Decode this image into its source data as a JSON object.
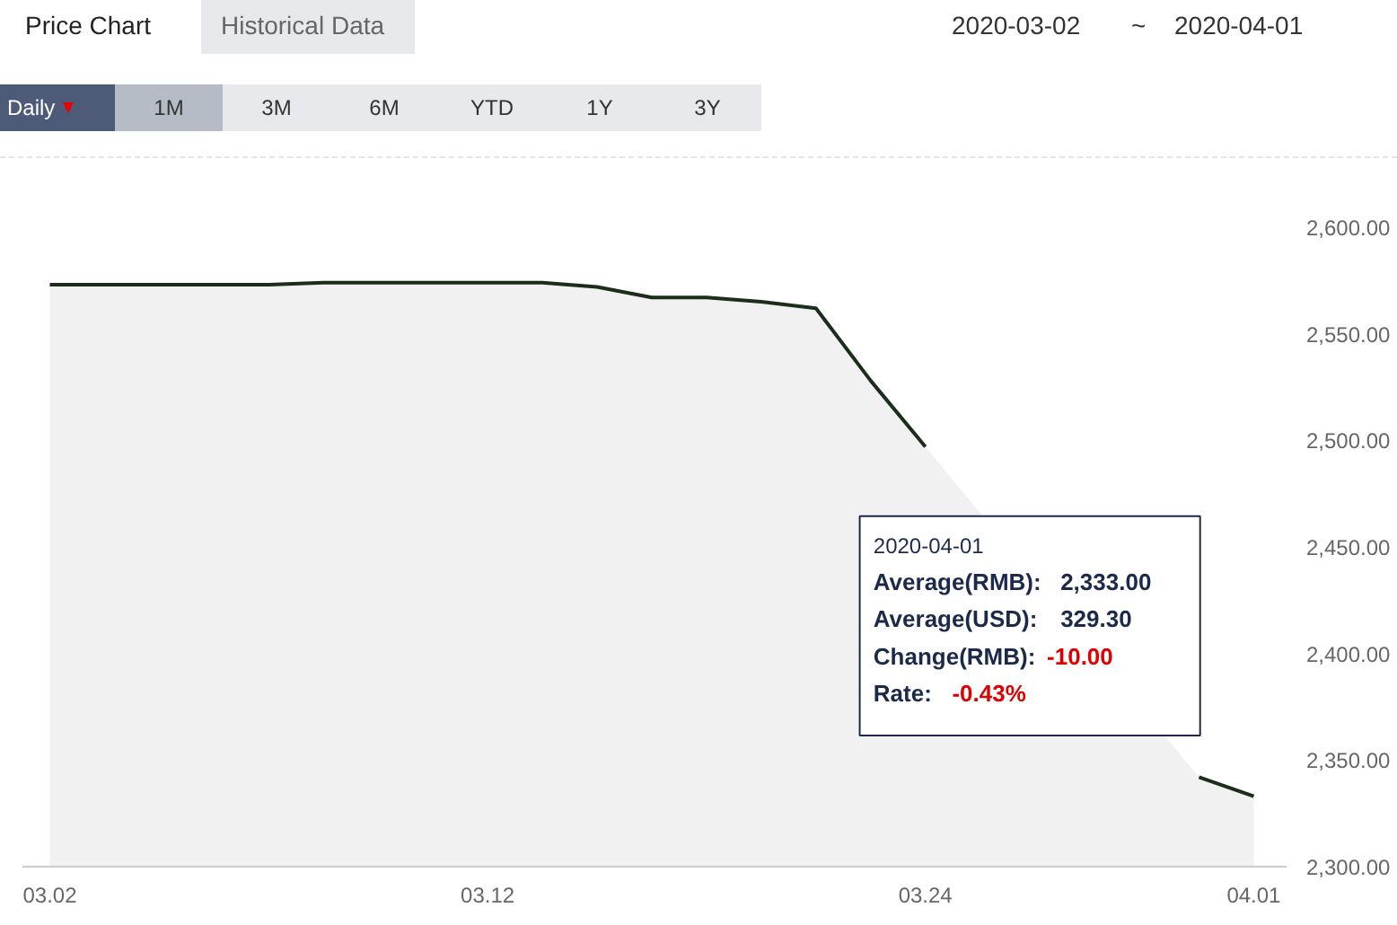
{
  "chart_data": {
    "type": "area",
    "categories": [
      "03.02",
      null,
      null,
      null,
      null,
      null,
      null,
      null,
      "03.12",
      null,
      null,
      null,
      null,
      null,
      null,
      null,
      "03.24",
      null,
      null,
      null,
      null,
      null,
      "04.01"
    ],
    "series": [
      {
        "color": "#1a2e1a",
        "values": [
          2573,
          2573,
          2573,
          2573,
          2573,
          2574,
          2574,
          2574,
          2574,
          2574,
          2572,
          2567,
          2567,
          2565,
          2562,
          2528,
          2497,
          null,
          null,
          null,
          null,
          2342,
          2333
        ]
      }
    ],
    "ylim": [
      2300,
      2600
    ],
    "yticks": [
      {
        "value": 2300,
        "label": "2,300.00"
      },
      {
        "value": 2350,
        "label": "2,350.00"
      },
      {
        "value": 2400,
        "label": "2,400.00"
      },
      {
        "value": 2450,
        "label": "2,450.00"
      },
      {
        "value": 2500,
        "label": "2,500.00"
      },
      {
        "value": 2550,
        "label": "2,550.00"
      },
      {
        "value": 2600,
        "label": "2,600.00"
      }
    ],
    "grid": false,
    "annotations": [
      "Price Chart",
      "Historical Data",
      "2020-03-02",
      "~",
      "2020-04-01",
      "Daily",
      "1M",
      "3M",
      "6M",
      "YTD",
      "1Y",
      "3Y",
      "2020-04-01",
      "Average(RMB):",
      "2,333.00",
      "Average(USD):",
      "329.30",
      "Change(RMB):",
      "-10.00",
      "Rate:",
      "-0.43%"
    ]
  }
}
